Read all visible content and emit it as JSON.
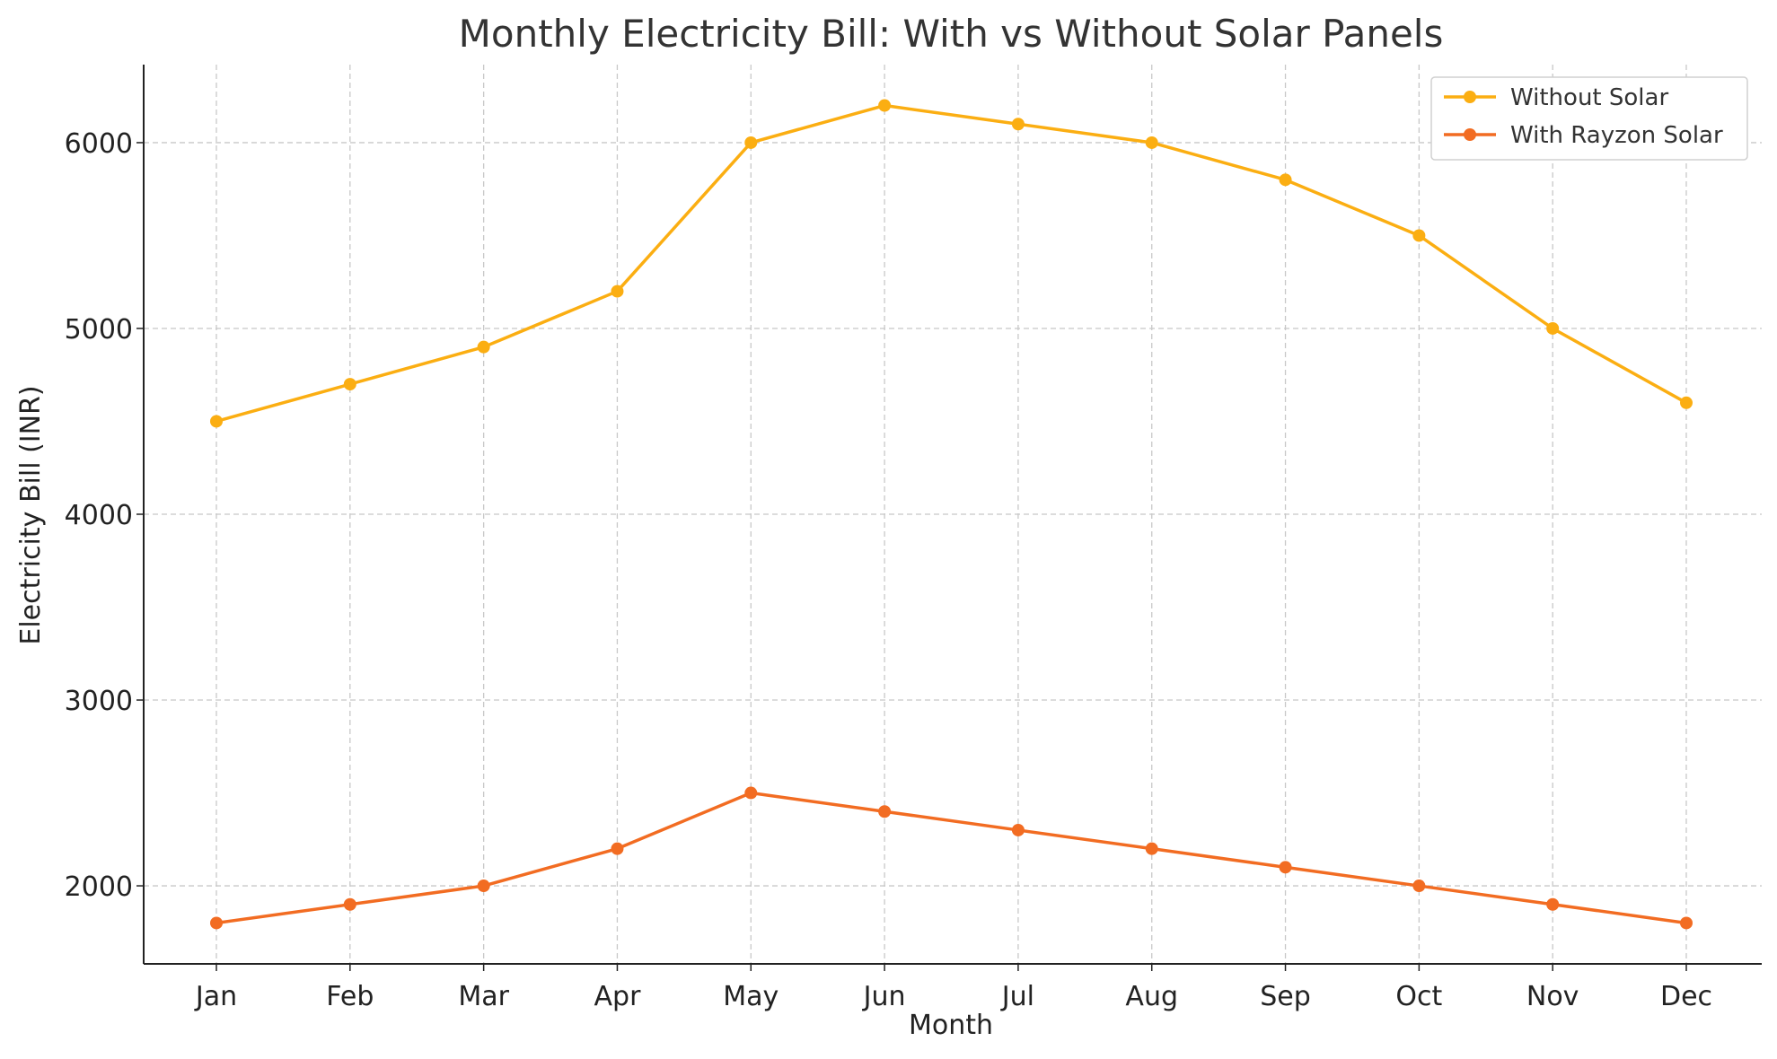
{
  "chart_data": {
    "type": "line",
    "title": "Monthly Electricity Bill: With vs Without Solar Panels",
    "xlabel": "Month",
    "ylabel": "Electricity Bill (INR)",
    "categories": [
      "Jan",
      "Feb",
      "Mar",
      "Apr",
      "May",
      "Jun",
      "Jul",
      "Aug",
      "Sep",
      "Oct",
      "Nov",
      "Dec"
    ],
    "yticks": [
      2000,
      3000,
      4000,
      5000,
      6000
    ],
    "ylim": [
      1580,
      6420
    ],
    "grid": true,
    "legend_position": "top-right",
    "series": [
      {
        "name": "Without Solar",
        "color": "#FBAE12",
        "values": [
          4500,
          4700,
          4900,
          5200,
          6000,
          6200,
          6100,
          6000,
          5800,
          5500,
          5000,
          4600
        ]
      },
      {
        "name": "With Rayzon Solar",
        "color": "#F26C22",
        "values": [
          1800,
          1900,
          2000,
          2200,
          2500,
          2400,
          2300,
          2200,
          2100,
          2000,
          1900,
          1800
        ]
      }
    ]
  }
}
